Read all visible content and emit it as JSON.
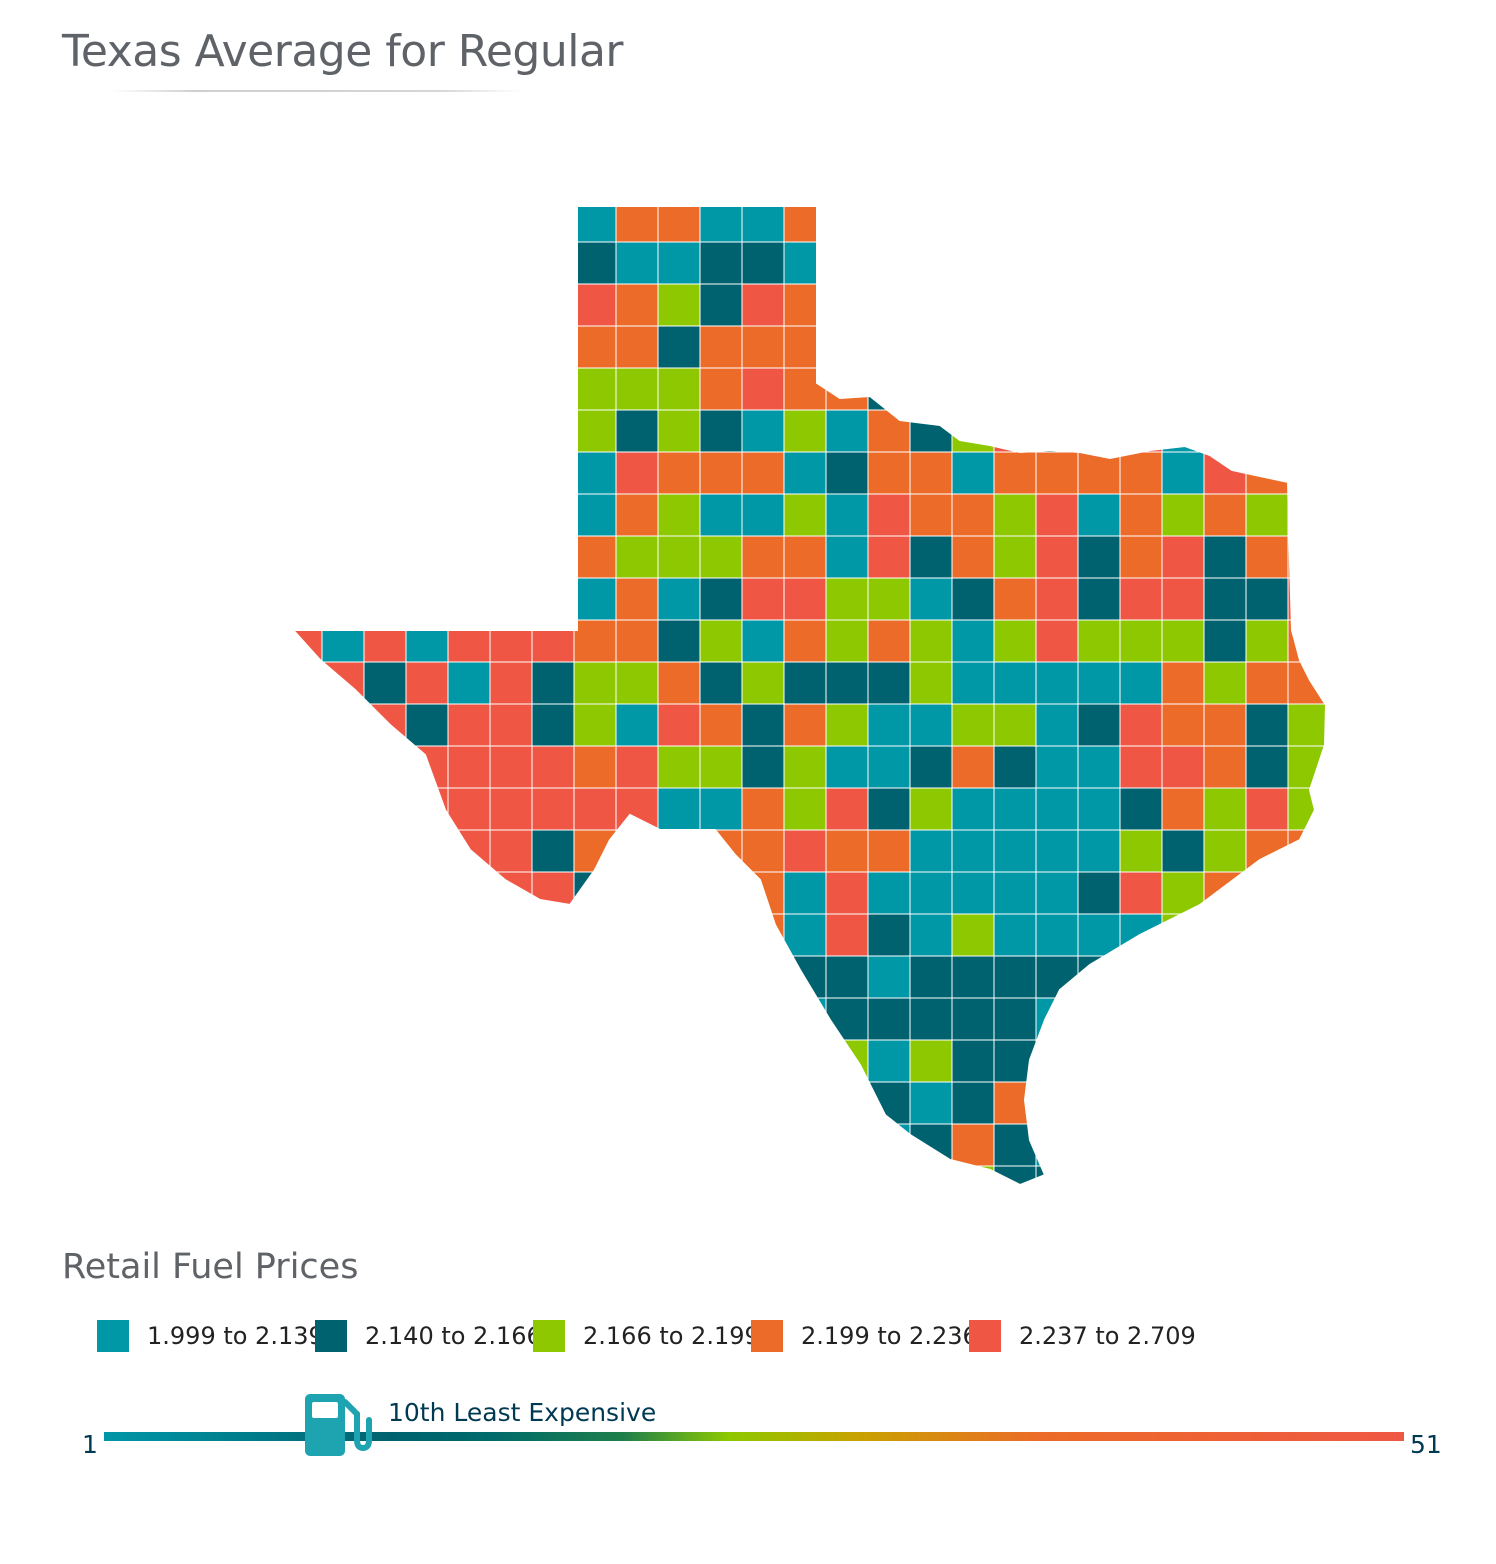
{
  "header": {
    "title": "Texas Average for Regular"
  },
  "legend": {
    "title": "Retail Fuel Prices",
    "items": [
      {
        "label": "1.999 to 2.139",
        "color": "#0097a7"
      },
      {
        "label": "2.140 to 2.166",
        "color": "#00626f"
      },
      {
        "label": "2.166 to 2.199",
        "color": "#8dc800"
      },
      {
        "label": "2.199 to 2.236",
        "color": "#ec6b28"
      },
      {
        "label": "2.237 to 2.709",
        "color": "#ef5744"
      }
    ]
  },
  "rank": {
    "min_label": "1",
    "max_label": "51",
    "label": "10th Least Expensive",
    "value": 10,
    "min": 1,
    "max": 51,
    "icon": "fuel-pump-icon"
  }
}
